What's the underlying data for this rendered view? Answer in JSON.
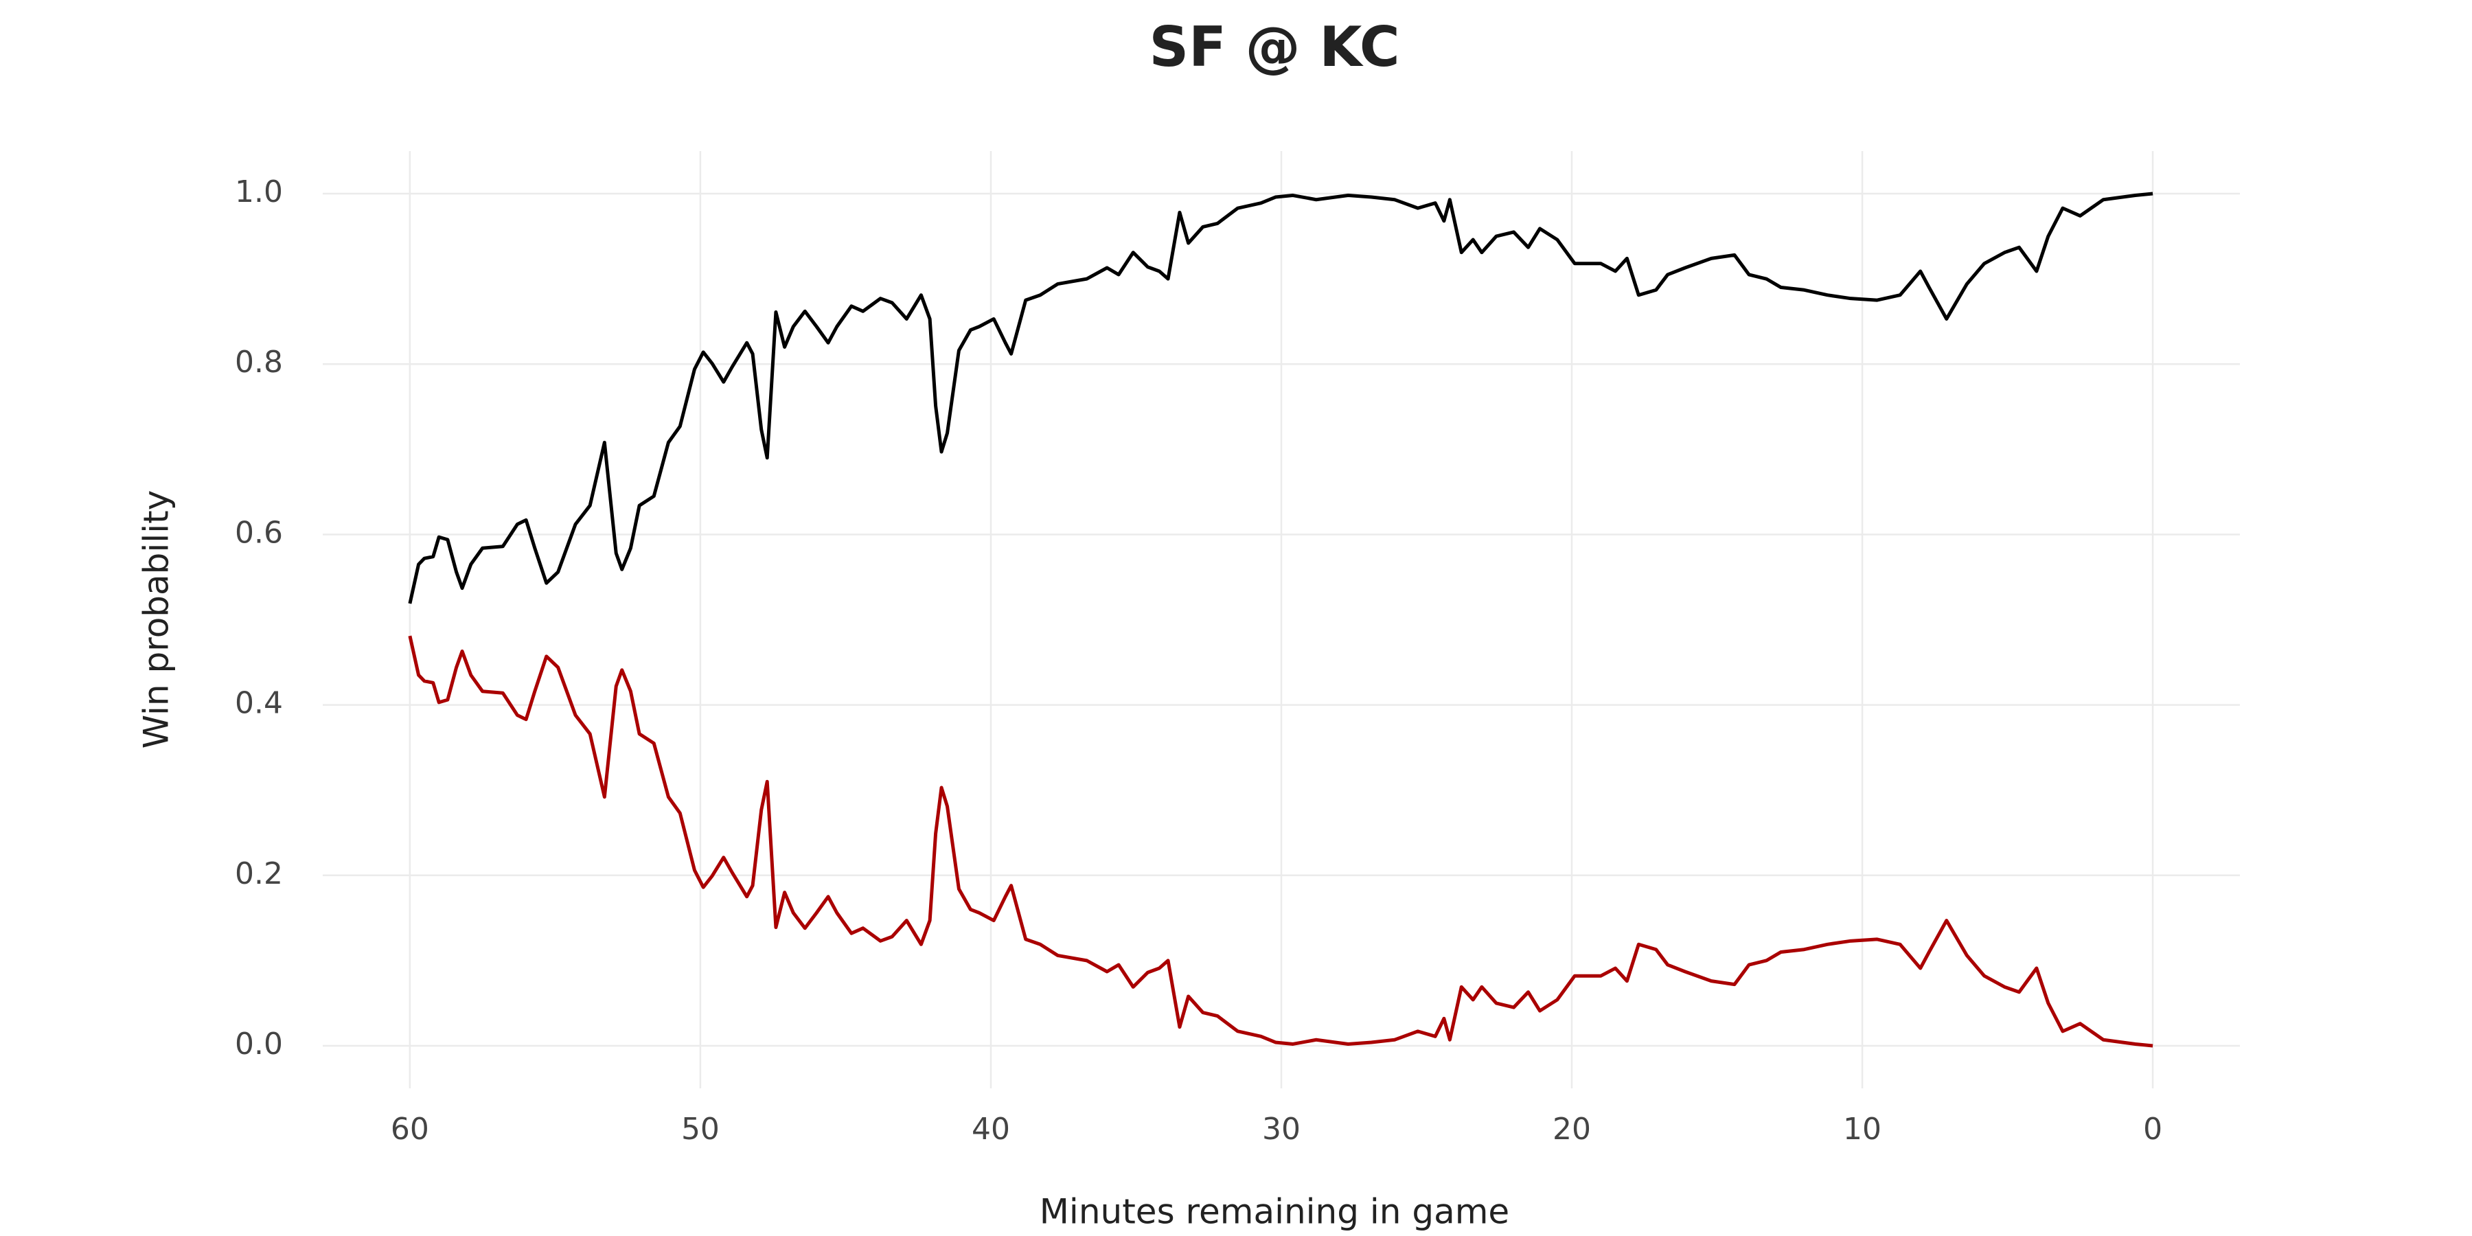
{
  "chart_data": {
    "type": "line",
    "title": "SF @ KC",
    "xlabel": "Minutes remaining in game",
    "ylabel": "Win probability",
    "x": [
      60,
      59.7,
      59.5,
      59.2,
      59.0,
      58.7,
      58.4,
      58.2,
      57.9,
      57.5,
      56.8,
      56.3,
      56.0,
      55.7,
      55.3,
      54.9,
      54.3,
      53.8,
      53.3,
      52.9,
      52.7,
      52.4,
      52.1,
      51.6,
      51.1,
      50.7,
      50.2,
      49.9,
      49.6,
      49.2,
      48.9,
      48.4,
      48.2,
      47.9,
      47.7,
      47.4,
      47.1,
      46.8,
      46.4,
      46.0,
      45.6,
      45.3,
      44.8,
      44.4,
      43.8,
      43.4,
      42.9,
      42.4,
      42.1,
      41.9,
      41.7,
      41.5,
      41.1,
      40.7,
      40.4,
      39.9,
      39.5,
      39.3,
      38.8,
      38.3,
      37.7,
      36.7,
      36.0,
      35.6,
      35.1,
      34.6,
      34.2,
      33.9,
      33.5,
      33.2,
      32.7,
      32.2,
      31.5,
      30.7,
      30.2,
      29.6,
      28.8,
      27.7,
      26.9,
      26.1,
      25.3,
      24.7,
      24.4,
      24.2,
      23.8,
      23.4,
      23.1,
      22.6,
      22.0,
      21.5,
      21.1,
      20.5,
      19.9,
      19.0,
      18.5,
      18.1,
      17.7,
      17.1,
      16.7,
      16.1,
      15.2,
      14.4,
      13.9,
      13.3,
      12.8,
      12.0,
      11.2,
      10.4,
      9.5,
      8.7,
      8.0,
      7.7,
      7.1,
      6.4,
      5.8,
      5.1,
      4.6,
      4.0,
      3.6,
      3.1,
      2.5,
      1.7,
      0.6,
      0
    ],
    "series": [
      {
        "color": "#000000",
        "values": [
          0.519,
          0.565,
          0.572,
          0.574,
          0.597,
          0.594,
          0.556,
          0.537,
          0.565,
          0.584,
          0.586,
          0.612,
          0.617,
          0.584,
          0.543,
          0.556,
          0.612,
          0.634,
          0.708,
          0.578,
          0.559,
          0.584,
          0.634,
          0.645,
          0.708,
          0.727,
          0.794,
          0.814,
          0.801,
          0.779,
          0.797,
          0.825,
          0.812,
          0.723,
          0.69,
          0.861,
          0.82,
          0.844,
          0.862,
          0.844,
          0.825,
          0.844,
          0.868,
          0.862,
          0.877,
          0.872,
          0.853,
          0.881,
          0.853,
          0.751,
          0.697,
          0.719,
          0.816,
          0.84,
          0.844,
          0.853,
          0.825,
          0.812,
          0.875,
          0.881,
          0.894,
          0.9,
          0.913,
          0.905,
          0.931,
          0.914,
          0.909,
          0.9,
          0.978,
          0.942,
          0.961,
          0.965,
          0.983,
          0.989,
          0.996,
          0.998,
          0.993,
          0.998,
          0.996,
          0.993,
          0.983,
          0.989,
          0.968,
          0.993,
          0.931,
          0.946,
          0.931,
          0.95,
          0.955,
          0.937,
          0.959,
          0.946,
          0.918,
          0.918,
          0.909,
          0.924,
          0.881,
          0.887,
          0.905,
          0.913,
          0.924,
          0.928,
          0.905,
          0.9,
          0.89,
          0.887,
          0.881,
          0.877,
          0.875,
          0.881,
          0.909,
          0.89,
          0.853,
          0.894,
          0.918,
          0.931,
          0.937,
          0.909,
          0.95,
          0.983,
          0.974,
          0.993,
          0.998,
          1.0
        ]
      },
      {
        "color": "#aa0000",
        "values": [
          0.481,
          0.435,
          0.428,
          0.426,
          0.403,
          0.406,
          0.444,
          0.463,
          0.435,
          0.416,
          0.414,
          0.388,
          0.383,
          0.416,
          0.457,
          0.444,
          0.388,
          0.366,
          0.292,
          0.422,
          0.441,
          0.416,
          0.366,
          0.355,
          0.292,
          0.273,
          0.206,
          0.186,
          0.199,
          0.221,
          0.203,
          0.175,
          0.188,
          0.277,
          0.31,
          0.139,
          0.18,
          0.156,
          0.138,
          0.156,
          0.175,
          0.156,
          0.132,
          0.138,
          0.123,
          0.128,
          0.147,
          0.119,
          0.147,
          0.249,
          0.303,
          0.281,
          0.184,
          0.16,
          0.156,
          0.147,
          0.175,
          0.188,
          0.125,
          0.119,
          0.106,
          0.1,
          0.087,
          0.095,
          0.069,
          0.086,
          0.091,
          0.1,
          0.022,
          0.058,
          0.039,
          0.035,
          0.017,
          0.011,
          0.004,
          0.002,
          0.007,
          0.002,
          0.004,
          0.007,
          0.017,
          0.011,
          0.032,
          0.007,
          0.069,
          0.054,
          0.069,
          0.05,
          0.045,
          0.063,
          0.041,
          0.054,
          0.082,
          0.082,
          0.091,
          0.076,
          0.119,
          0.113,
          0.095,
          0.087,
          0.076,
          0.072,
          0.095,
          0.1,
          0.11,
          0.113,
          0.119,
          0.123,
          0.125,
          0.119,
          0.091,
          0.11,
          0.147,
          0.106,
          0.082,
          0.069,
          0.063,
          0.091,
          0.05,
          0.017,
          0.026,
          0.007,
          0.002,
          0
        ]
      }
    ],
    "xlim": [
      63,
      -3
    ],
    "xticks": [
      60,
      50,
      40,
      30,
      20,
      10,
      0
    ],
    "ylim": [
      -0.05,
      1.05
    ],
    "yticks": [
      {
        "value": 0,
        "label": "0.0"
      },
      0.2,
      0.4,
      0.6,
      0.8,
      {
        "value": 1,
        "label": "1.0"
      }
    ],
    "grid": true
  }
}
